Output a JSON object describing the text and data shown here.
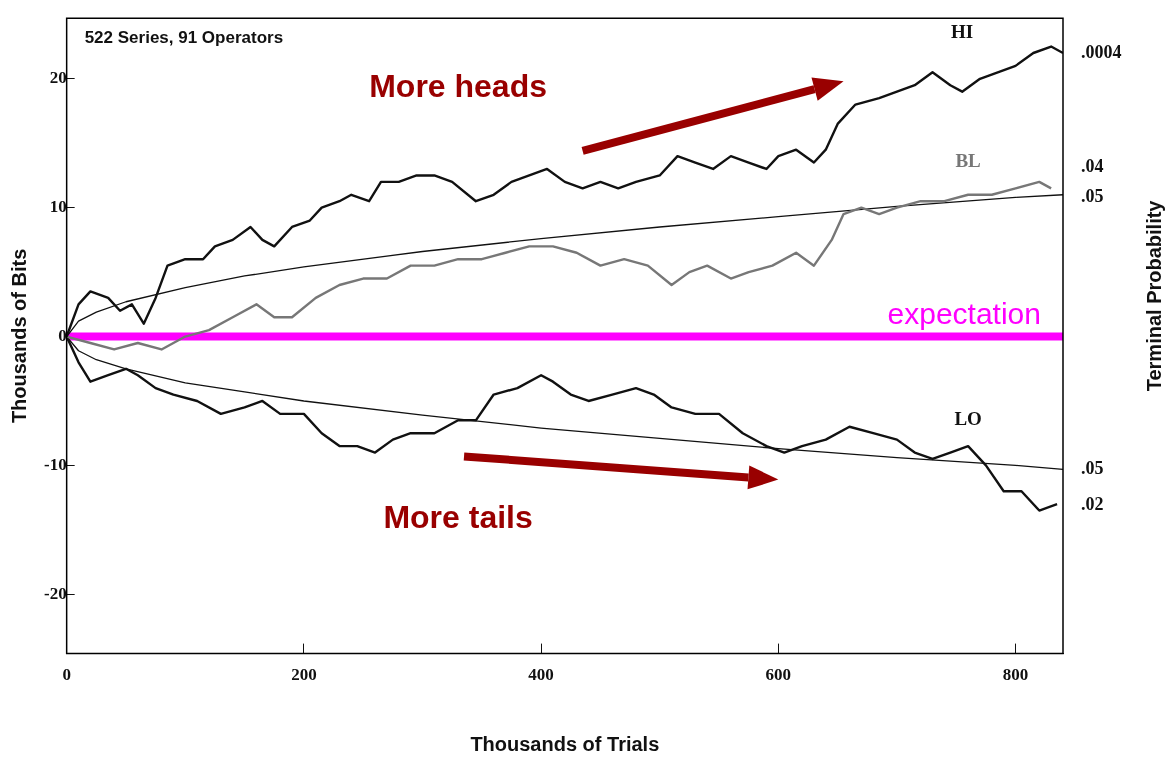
{
  "chart_data": {
    "type": "line",
    "xlabel": "Thousands of Trials",
    "ylabel": "Thousands of Bits",
    "y2label": "Terminal Probability",
    "xlim": [
      0,
      840
    ],
    "xticks": [
      0,
      200,
      400,
      600,
      800
    ],
    "ylim": [
      -24.6,
      24.7
    ],
    "yticks": [
      -20,
      -10,
      0,
      10,
      20
    ],
    "grid": false,
    "legend": false,
    "marker": "none",
    "line_style": "solid",
    "ref_lines": [
      {
        "axis": "y",
        "value": 0,
        "label": "expectation",
        "color": "#ff00ff"
      }
    ],
    "annotations": [
      "522 Series, 91 Operators",
      "More heads",
      "More tails",
      ".0004",
      ".04",
      ".05",
      ".05",
      ".02"
    ],
    "series": [
      {
        "name": "HI",
        "color": "#111111",
        "x": [
          0,
          10,
          20,
          35,
          45,
          55,
          65,
          75,
          85,
          100,
          115,
          125,
          140,
          155,
          165,
          175,
          190,
          205,
          215,
          230,
          240,
          255,
          265,
          280,
          295,
          310,
          325,
          345,
          360,
          375,
          390,
          405,
          420,
          435,
          450,
          465,
          480,
          500,
          515,
          530,
          545,
          560,
          575,
          590,
          600,
          615,
          630,
          640,
          650,
          665,
          685,
          700,
          715,
          730,
          745,
          755,
          770,
          785,
          800,
          815,
          830,
          840
        ],
        "values": [
          0,
          2.5,
          3.5,
          3,
          2,
          2.5,
          1,
          3,
          5.5,
          6,
          6,
          7,
          7.5,
          8.5,
          7.5,
          7,
          8.5,
          9,
          10,
          10.5,
          11,
          10.5,
          12,
          12,
          12.5,
          12.5,
          12,
          10.5,
          11,
          12,
          12.5,
          13,
          12,
          11.5,
          12,
          11.5,
          12,
          12.5,
          14,
          13.5,
          13,
          14,
          13.5,
          13,
          14,
          14.5,
          13.5,
          14.5,
          16.5,
          18,
          18.5,
          19,
          19.5,
          20.5,
          19.5,
          19,
          20,
          20.5,
          21,
          22,
          22.5,
          22
        ]
      },
      {
        "name": "BL",
        "color": "#777777",
        "x": [
          0,
          20,
          40,
          60,
          80,
          100,
          120,
          140,
          160,
          175,
          190,
          210,
          230,
          250,
          270,
          290,
          310,
          330,
          350,
          370,
          390,
          410,
          430,
          450,
          470,
          490,
          510,
          525,
          540,
          560,
          575,
          595,
          615,
          630,
          645,
          655,
          670,
          685,
          700,
          720,
          740,
          760,
          780,
          800,
          820,
          830
        ],
        "values": [
          0,
          -0.5,
          -1,
          -0.5,
          -1,
          0,
          0.5,
          1.5,
          2.5,
          1.5,
          1.5,
          3,
          4,
          4.5,
          4.5,
          5.5,
          5.5,
          6,
          6,
          6.5,
          7,
          7,
          6.5,
          5.5,
          6,
          5.5,
          4,
          5,
          5.5,
          4.5,
          5,
          5.5,
          6.5,
          5.5,
          7.5,
          9.5,
          10,
          9.5,
          10,
          10.5,
          10.5,
          11,
          11,
          11.5,
          12,
          11.5
        ]
      },
      {
        "name": "LO",
        "color": "#111111",
        "x": [
          0,
          10,
          20,
          35,
          50,
          60,
          75,
          90,
          110,
          130,
          150,
          165,
          180,
          200,
          215,
          230,
          245,
          260,
          275,
          290,
          310,
          330,
          345,
          360,
          380,
          400,
          410,
          425,
          440,
          460,
          480,
          495,
          510,
          530,
          550,
          570,
          590,
          605,
          620,
          640,
          660,
          680,
          700,
          715,
          730,
          745,
          760,
          775,
          790,
          805,
          820,
          835
        ],
        "values": [
          0,
          -2,
          -3.5,
          -3,
          -2.5,
          -3,
          -4,
          -4.5,
          -5,
          -6,
          -5.5,
          -5,
          -6,
          -6,
          -7.5,
          -8.5,
          -8.5,
          -9,
          -8,
          -7.5,
          -7.5,
          -6.5,
          -6.5,
          -4.5,
          -4,
          -3,
          -3.5,
          -4.5,
          -5,
          -4.5,
          -4,
          -4.5,
          -5.5,
          -6,
          -6,
          -7.5,
          -8.5,
          -9,
          -8.5,
          -8,
          -7,
          -7.5,
          -8,
          -9,
          -9.5,
          -9,
          -8.5,
          -10,
          -12,
          -12,
          -13.5,
          -13
        ]
      },
      {
        "color": "#111111",
        "x": [
          0,
          10,
          25,
          50,
          100,
          150,
          200,
          300,
          400,
          500,
          600,
          700,
          800,
          840
        ],
        "values": [
          0,
          1.2,
          1.9,
          2.7,
          3.8,
          4.7,
          5.4,
          6.6,
          7.6,
          8.5,
          9.3,
          10.1,
          10.8,
          11.0
        ]
      },
      {
        "color": "#111111",
        "x": [
          0,
          10,
          25,
          50,
          100,
          150,
          200,
          300,
          400,
          500,
          600,
          700,
          800,
          840
        ],
        "values": [
          0,
          -1.1,
          -1.8,
          -2.5,
          -3.6,
          -4.3,
          -5.0,
          -6.1,
          -7.1,
          -7.9,
          -8.7,
          -9.4,
          -10.0,
          -10.3
        ]
      }
    ]
  }
}
